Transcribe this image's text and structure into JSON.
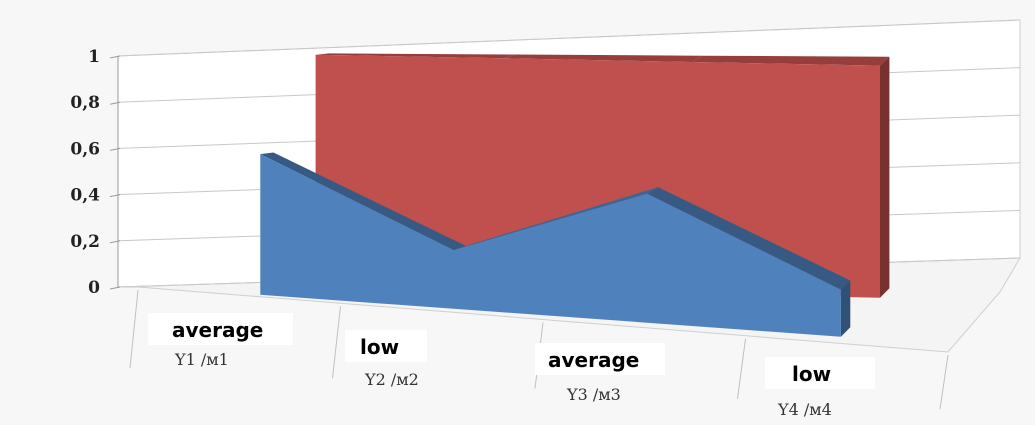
{
  "chart_data": {
    "type": "area",
    "view": "3d",
    "ylim": [
      0,
      1
    ],
    "yticks": [
      "0",
      "0,2",
      "0,4",
      "0,6",
      "0,8",
      "1"
    ],
    "categories": [
      {
        "label": "average",
        "sub": "Y1  /м1"
      },
      {
        "label": "low",
        "sub": "Y2  /м2"
      },
      {
        "label": "average",
        "sub": "Y3  /м3"
      },
      {
        "label": "low",
        "sub": "Y4  /м4"
      }
    ],
    "series": [
      {
        "values": [
          1,
          1,
          1,
          1
        ],
        "color": "#c0504d",
        "depth": "back"
      },
      {
        "values": [
          0.6,
          0.25,
          0.55,
          0.2
        ],
        "color": "#4f81bd",
        "depth": "front"
      }
    ],
    "grid": true,
    "legend": "none"
  }
}
